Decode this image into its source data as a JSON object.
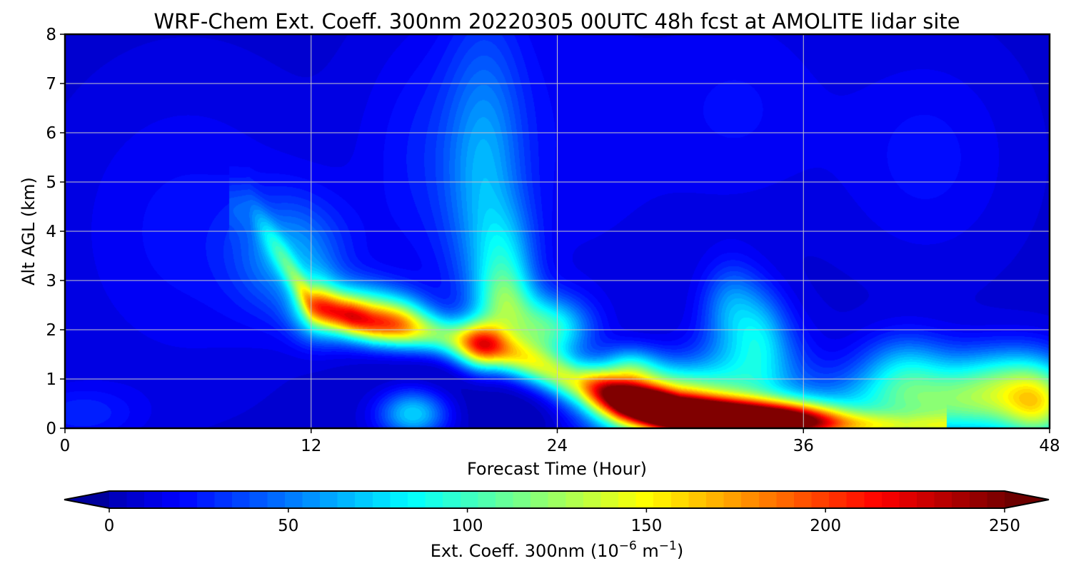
{
  "chart_data": {
    "type": "heatmap",
    "title": "WRF-Chem Ext. Coeff. 300nm  20220305 00UTC 48h fcst at AMOLITE lidar site",
    "xlabel": "Forecast Time (Hour)",
    "ylabel": "Alt AGL (km)",
    "xlim": [
      0,
      48
    ],
    "ylim": [
      0,
      8
    ],
    "x_ticks": [
      "0",
      "12",
      "24",
      "36",
      "48"
    ],
    "x_tick_values": [
      0,
      12,
      24,
      36,
      48
    ],
    "y_ticks": [
      "0",
      "1",
      "2",
      "3",
      "4",
      "5",
      "6",
      "7",
      "8"
    ],
    "y_tick_values": [
      0,
      1,
      2,
      3,
      4,
      5,
      6,
      7,
      8
    ],
    "grid": true,
    "colormap": "jet",
    "colorbar": {
      "label_main": "Ext. Coeff. 300nm  (10",
      "label_exp1": "−6",
      "label_mid": " m",
      "label_exp2": "−1",
      "label_end": ")",
      "range": [
        0,
        250
      ],
      "extend": "both",
      "ticks": [
        "0",
        "50",
        "100",
        "150",
        "200",
        "250"
      ],
      "tick_values": [
        0,
        50,
        100,
        150,
        200,
        250
      ]
    },
    "background_value": 8,
    "features": [
      {
        "x": 0.8,
        "y": 0.3,
        "sx": 2.0,
        "sy": 0.4,
        "v": 20
      },
      {
        "x": 6,
        "y": 4.0,
        "sx": 4.0,
        "sy": 2.0,
        "v": 14
      },
      {
        "x": 11,
        "y": 3.5,
        "sx": 1.8,
        "sy": 0.8,
        "v": 50
      },
      {
        "x": 18,
        "y": 5.5,
        "sx": 2.5,
        "sy": 1.8,
        "v": 18
      },
      {
        "x": 20.5,
        "y": 5.0,
        "sx": 1.3,
        "sy": 2.2,
        "v": 45
      },
      {
        "x": 21.5,
        "y": 3.3,
        "sx": 1.0,
        "sy": 0.8,
        "v": 45
      },
      {
        "x": 25,
        "y": 6.0,
        "sx": 3.5,
        "sy": 2.5,
        "v": 10
      },
      {
        "x": 33,
        "y": 6.5,
        "sx": 3.0,
        "sy": 1.5,
        "v": 12
      },
      {
        "x": 42,
        "y": 5.5,
        "sx": 3.0,
        "sy": 1.5,
        "v": 14
      },
      {
        "x": 32.5,
        "y": 2.5,
        "sx": 1.0,
        "sy": 0.6,
        "v": 45
      },
      {
        "x": 34,
        "y": 2.0,
        "sx": 0.9,
        "sy": 0.6,
        "v": 35
      },
      {
        "x": 33.5,
        "y": 1.2,
        "sx": 1.8,
        "sy": 0.7,
        "v": 55
      },
      {
        "x": 41,
        "y": 1.2,
        "sx": 1.6,
        "sy": 0.5,
        "v": 55
      },
      {
        "x": 45.5,
        "y": 1.0,
        "sx": 1.8,
        "sy": 0.5,
        "v": 60
      },
      {
        "x": 43,
        "y": 0.45,
        "sx": 4.5,
        "sy": 0.5,
        "v": 90
      },
      {
        "x": 47.5,
        "y": 0.5,
        "sx": 1.2,
        "sy": 0.6,
        "v": 80
      },
      {
        "x": 17,
        "y": 0.3,
        "sx": 1.2,
        "sy": 0.35,
        "v": 75
      },
      {
        "x": 12.2,
        "y": 2.5,
        "sx": 0.8,
        "sy": 0.45,
        "v": 65
      },
      {
        "x": 14.3,
        "y": 2.35,
        "sx": 1.5,
        "sy": 0.4,
        "v": 105
      },
      {
        "x": 16.5,
        "y": 2.2,
        "sx": 1.0,
        "sy": 0.35,
        "v": 60
      },
      {
        "x": 20.3,
        "y": 1.7,
        "sx": 0.8,
        "sy": 0.35,
        "v": 85
      },
      {
        "x": 23.5,
        "y": 2.0,
        "sx": 1.4,
        "sy": 0.45,
        "v": 95
      },
      {
        "x": 21.5,
        "y": 2.5,
        "sx": 1.0,
        "sy": 0.5,
        "v": 55
      },
      {
        "x": 20,
        "y": 0.8,
        "sx": 3.5,
        "sy": 0.8,
        "v": -15
      },
      {
        "x": 24,
        "y": 0.2,
        "sx": 2.5,
        "sy": 0.3,
        "v": -8
      },
      {
        "x": 27.5,
        "y": 1.2,
        "sx": 1.0,
        "sy": 0.3,
        "v": 60
      },
      {
        "x": 29,
        "y": 0.5,
        "sx": 2.5,
        "sy": 0.5,
        "v": 160
      },
      {
        "x": 33,
        "y": 0.3,
        "sx": 2.5,
        "sy": 0.25,
        "v": 110
      },
      {
        "x": 36,
        "y": 0.2,
        "sx": 1.5,
        "sy": 0.25,
        "v": 60
      }
    ],
    "band": {
      "pts": [
        [
          9,
          4.5
        ],
        [
          12,
          2.5
        ],
        [
          15,
          2.1
        ],
        [
          18,
          1.9
        ],
        [
          21,
          1.6
        ],
        [
          24,
          1.1
        ],
        [
          27,
          0.6
        ],
        [
          30,
          0.25
        ],
        [
          33,
          0.15
        ],
        [
          37,
          0.05
        ],
        [
          41,
          0.0
        ]
      ],
      "width_pts": [
        [
          9,
          0.35
        ],
        [
          12,
          0.25
        ],
        [
          20,
          0.3
        ],
        [
          26,
          0.3
        ],
        [
          30,
          0.25
        ],
        [
          41,
          0.2
        ]
      ],
      "amp_pts": [
        [
          9,
          18
        ],
        [
          11.5,
          60
        ],
        [
          14,
          110
        ],
        [
          17,
          95
        ],
        [
          20,
          110
        ],
        [
          23,
          115
        ],
        [
          25,
          115
        ],
        [
          27,
          190
        ],
        [
          29,
          230
        ],
        [
          32,
          190
        ],
        [
          35,
          170
        ],
        [
          38,
          110
        ],
        [
          41,
          70
        ]
      ]
    }
  }
}
